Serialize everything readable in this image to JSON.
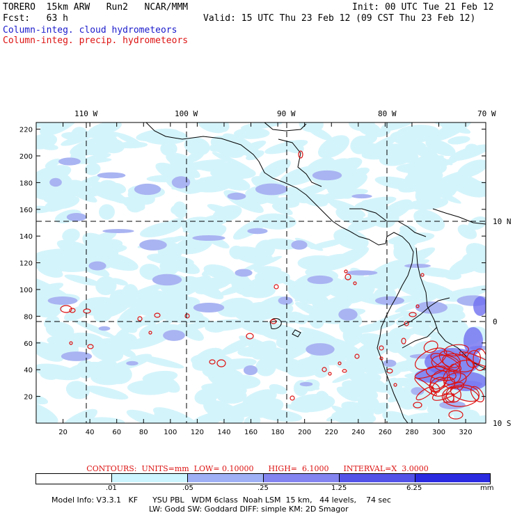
{
  "header": {
    "model": "TORERO  15km ARW   Run2   NCAR/MMM",
    "init": "Init: 00 UTC Tue 21 Feb 12",
    "fcst_label": "Fcst:   63 h",
    "valid": "Valid: 15 UTC Thu 23 Feb 12 (09 CST Thu 23 Feb 12)",
    "field1": "Column-integ. cloud hydrometeors",
    "field2": "Column-integ. precip. hydrometeors"
  },
  "axes": {
    "lon_labels": [
      "110 W",
      "100 W",
      "90 W",
      "80 W",
      "70 W"
    ],
    "lat_labels": [
      "10 N",
      "0",
      "10 S"
    ],
    "x_ticks": [
      "20",
      "40",
      "60",
      "80",
      "100",
      "120",
      "140",
      "160",
      "180",
      "200",
      "220",
      "240",
      "260",
      "280",
      "300",
      "320"
    ],
    "y_ticks": [
      "220",
      "200",
      "180",
      "160",
      "140",
      "120",
      "100",
      "80",
      "60",
      "40",
      "20"
    ]
  },
  "contours": {
    "text": "CONTOURS:  UNITS=mm  LOW= 0.10000      HIGH=  6.1000      INTERVAL=X  3.0000"
  },
  "colorbar": {
    "levels": [
      ".01",
      ".05",
      ".25",
      "1.25",
      "6.25"
    ],
    "unit": "mm",
    "colors": [
      "#ffffff",
      "#ccf5ff",
      "#9fb0f5",
      "#6f6ff0",
      "#3b3be8",
      "#2020e0"
    ]
  },
  "footer": {
    "line1": "Model Info: V3.3.1   KF      YSU PBL   WDM 6class  Noah LSM  15 km,   44 levels,    74 sec",
    "line2": "LW: Godd SW: Goddard DIFF: simple KM: 2D Smagor"
  },
  "colors": {
    "cloud_light": "#d4f4fb",
    "cloud_mid": "#a9b4f2",
    "precip": "#dd1111",
    "coast": "#000000"
  }
}
